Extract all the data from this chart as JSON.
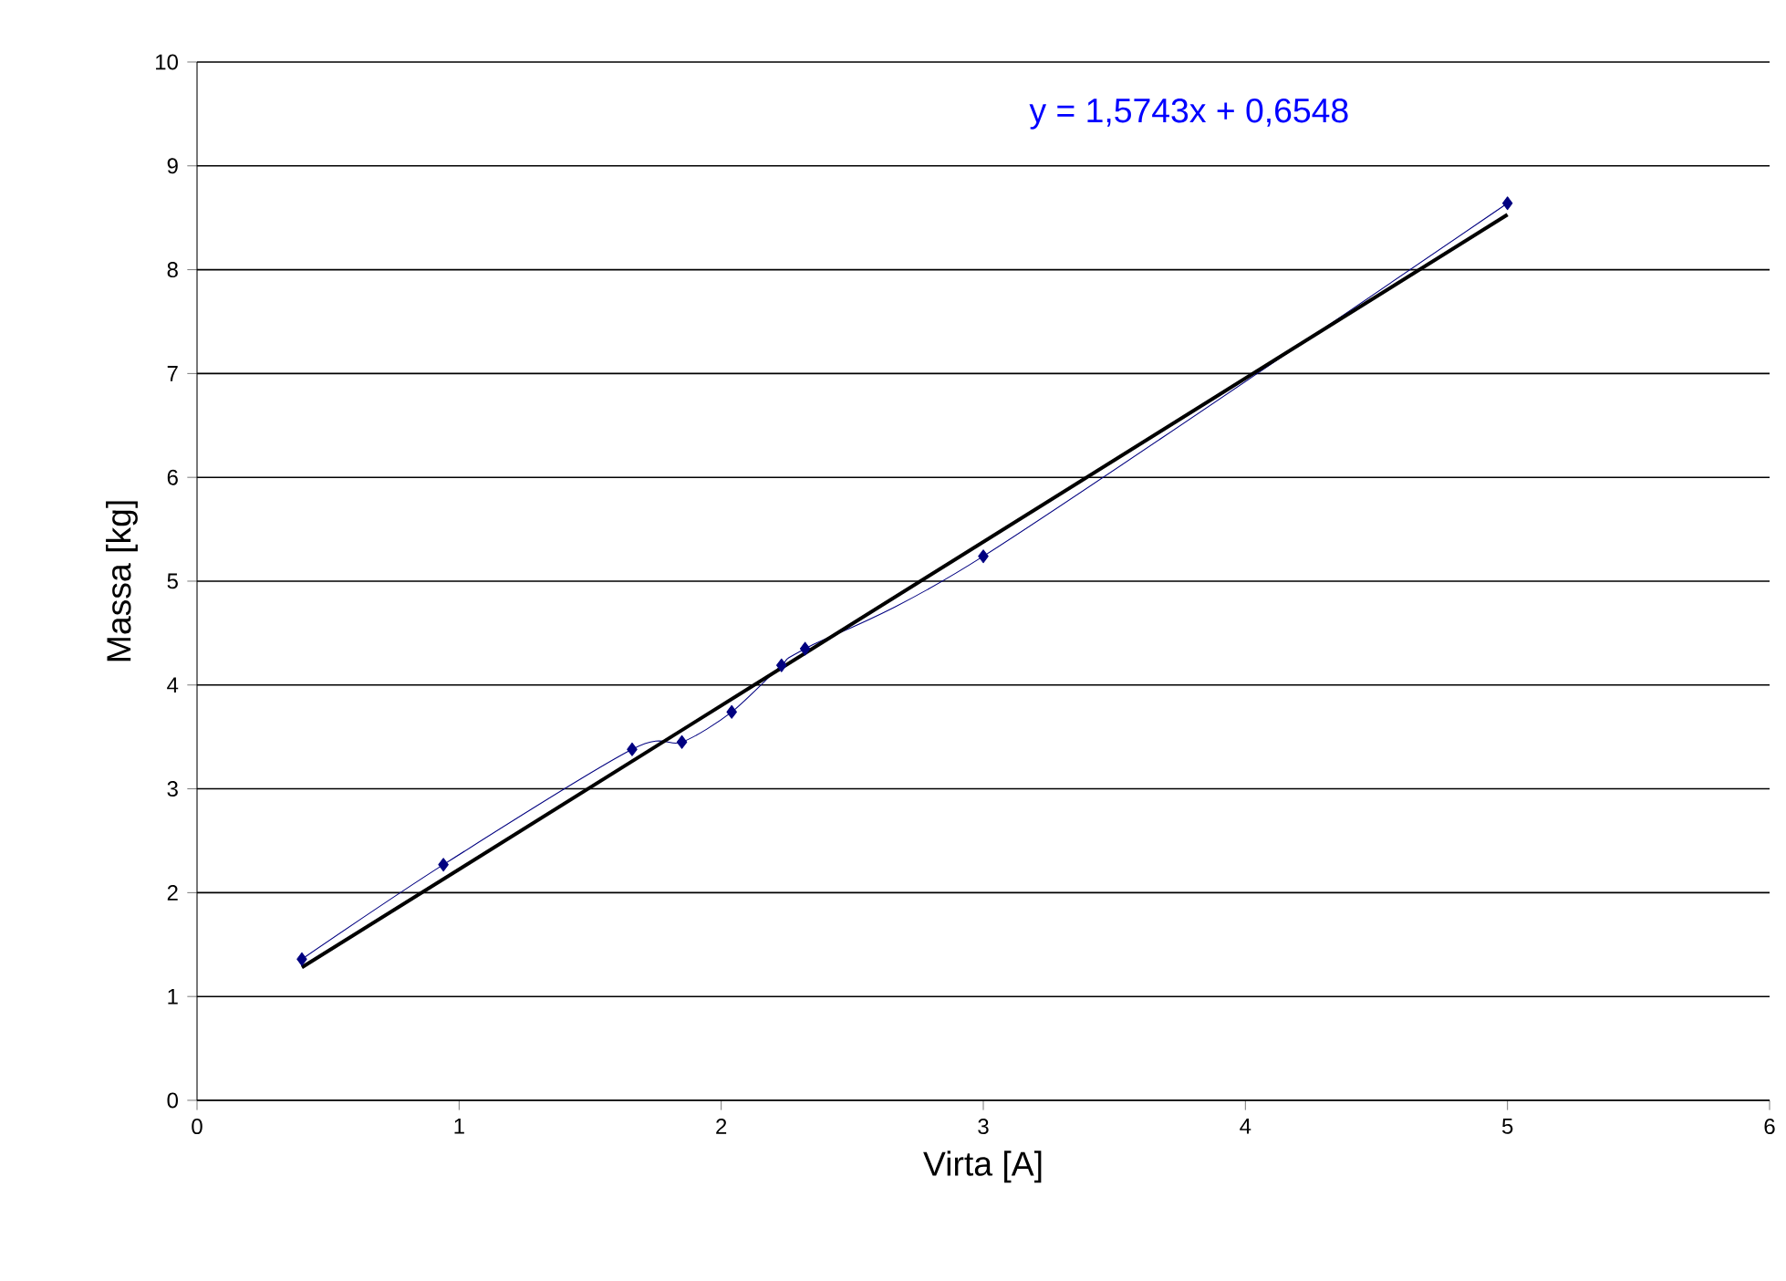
{
  "chart_data": {
    "type": "line",
    "xlabel": "Virta [A]",
    "ylabel": "Massa [kg]",
    "series": [
      {
        "color": "#000080",
        "marker": "diamond",
        "x": [
          0.4,
          0.94,
          1.66,
          1.85,
          2.04,
          2.23,
          2.32,
          3.0,
          5.0
        ],
        "values": [
          1.36,
          2.27,
          3.38,
          3.45,
          3.74,
          4.19,
          4.35,
          5.24,
          8.64
        ]
      },
      {
        "color": "#000000",
        "marker": "none",
        "x": [
          0.4,
          5.0
        ],
        "values": [
          1.28,
          8.53
        ]
      }
    ],
    "annotations": [
      "y = 1,5743x + 0,6548"
    ],
    "xlim": [
      0,
      6
    ],
    "ylim": [
      0,
      10
    ],
    "xticks": [
      0,
      1,
      2,
      3,
      4,
      5,
      6
    ],
    "yticks": [
      0,
      1,
      2,
      3,
      4,
      5,
      6,
      7,
      8,
      9,
      10
    ],
    "grid": "y"
  }
}
